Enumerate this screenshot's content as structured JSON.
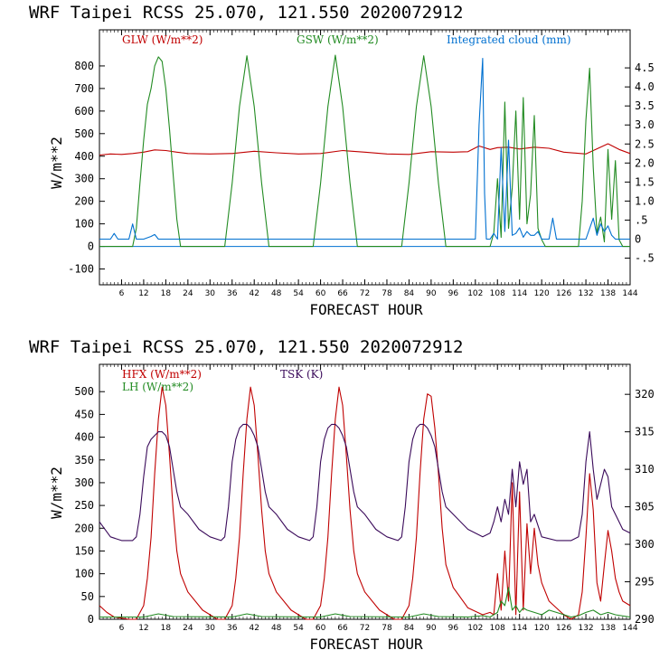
{
  "colors": {
    "red": "#c00000",
    "green": "#228b22",
    "blue": "#0070d0",
    "purple": "#3a0a5a",
    "black": "#000000"
  },
  "chart_data": [
    {
      "type": "line",
      "title": "WRF   Taipei RCSS   25.070, 121.550  2020072912",
      "xlabel": "FORECAST HOUR",
      "ylabel": "W/m**2",
      "xlim": [
        0,
        144
      ],
      "ylim": [
        -170,
        960
      ],
      "y2lim": [
        -1.2,
        5.5
      ],
      "yticks": [
        -100,
        0,
        100,
        200,
        300,
        400,
        500,
        600,
        700,
        800
      ],
      "y2ticks": [
        "-.5",
        "0",
        ".5",
        "1.0",
        "1.5",
        "2.0",
        "2.5",
        "3.0",
        "3.5",
        "4.0",
        "4.5"
      ],
      "xticks": [
        6,
        12,
        18,
        24,
        30,
        36,
        42,
        48,
        54,
        60,
        66,
        72,
        78,
        84,
        90,
        96,
        102,
        108,
        114,
        120,
        126,
        132,
        138,
        144
      ],
      "series": [
        {
          "name": "GLW (W/m**2)",
          "color_key": "red",
          "axis": "left",
          "x": [
            0,
            3,
            6,
            9,
            12,
            15,
            18,
            21,
            24,
            30,
            36,
            42,
            48,
            54,
            60,
            66,
            72,
            78,
            84,
            90,
            96,
            100,
            103,
            106,
            108,
            111,
            114,
            118,
            122,
            126,
            132,
            136,
            138,
            141,
            144
          ],
          "y": [
            405,
            410,
            408,
            412,
            418,
            428,
            425,
            418,
            412,
            410,
            412,
            422,
            415,
            410,
            412,
            425,
            418,
            410,
            408,
            420,
            418,
            420,
            445,
            430,
            438,
            440,
            432,
            440,
            435,
            418,
            410,
            440,
            455,
            430,
            412
          ]
        },
        {
          "name": "GSW (W/m**2)",
          "color_key": "green",
          "axis": "left",
          "x": [
            0,
            9,
            10,
            11,
            12,
            13,
            14,
            15,
            16,
            17,
            18,
            19,
            20,
            21,
            22,
            23,
            34,
            36,
            38,
            40,
            42,
            44,
            46,
            48,
            58,
            60,
            62,
            64,
            66,
            68,
            70,
            72,
            82,
            84,
            86,
            88,
            90,
            92,
            94,
            96,
            106,
            107,
            108,
            109,
            110,
            111,
            112,
            113,
            114,
            115,
            116,
            117,
            118,
            119,
            120,
            121,
            130,
            131,
            132,
            133,
            134,
            135,
            136,
            137,
            138,
            139,
            140,
            141,
            142,
            143,
            144
          ],
          "y": [
            0,
            0,
            80,
            280,
            470,
            630,
            700,
            800,
            840,
            820,
            700,
            520,
            320,
            120,
            0,
            0,
            0,
            280,
            620,
            845,
            620,
            280,
            0,
            0,
            0,
            280,
            620,
            848,
            620,
            280,
            0,
            0,
            0,
            280,
            620,
            845,
            620,
            280,
            0,
            0,
            0,
            60,
            300,
            40,
            640,
            80,
            260,
            600,
            120,
            660,
            100,
            230,
            580,
            80,
            30,
            0,
            0,
            200,
            560,
            790,
            350,
            60,
            130,
            20,
            430,
            120,
            380,
            30,
            0,
            0,
            0
          ]
        },
        {
          "name": "Integrated cloud (mm)",
          "color_key": "blue",
          "axis": "right",
          "x": [
            0,
            3,
            4,
            5,
            8,
            9,
            10,
            12,
            14,
            15,
            16,
            30,
            60,
            90,
            102,
            103,
            104,
            104.5,
            105,
            106,
            107,
            108,
            109,
            110,
            111,
            112,
            113,
            114,
            115,
            116,
            117,
            118,
            119,
            120,
            122,
            123,
            124,
            125,
            128,
            132,
            134,
            135,
            136,
            137,
            138,
            139,
            140,
            144
          ],
          "y": [
            0,
            0,
            0.15,
            0,
            0,
            0.4,
            0,
            0,
            0.07,
            0.12,
            0,
            0,
            0,
            0,
            0,
            3.0,
            4.75,
            1.2,
            0,
            0,
            0.15,
            0,
            2.4,
            0.2,
            2.6,
            0.1,
            0.15,
            0.3,
            0.05,
            0.2,
            0.1,
            0.1,
            0.2,
            0,
            0,
            0.55,
            0,
            0,
            0,
            0,
            0.55,
            0.1,
            0.4,
            0.2,
            0.35,
            0.1,
            0,
            0
          ]
        }
      ]
    },
    {
      "type": "line",
      "title": "WRF   Taipei RCSS   25.070, 121.550  2020072912",
      "xlabel": "FORECAST HOUR",
      "ylabel": "W/m**2",
      "xlim": [
        0,
        144
      ],
      "ylim": [
        0,
        560
      ],
      "y2lim": [
        290,
        324
      ],
      "yticks": [
        0,
        50,
        100,
        150,
        200,
        250,
        300,
        350,
        400,
        450,
        500
      ],
      "y2ticks": [
        290,
        295,
        300,
        305,
        310,
        315,
        320
      ],
      "xticks": [
        6,
        12,
        18,
        24,
        30,
        36,
        42,
        48,
        54,
        60,
        66,
        72,
        78,
        84,
        90,
        96,
        102,
        108,
        114,
        120,
        126,
        132,
        138,
        144
      ],
      "series": [
        {
          "name": "HFX (W/m**2)",
          "color_key": "red",
          "axis": "left",
          "x": [
            0,
            2,
            4,
            8,
            10,
            12,
            13,
            14,
            15,
            16,
            17,
            18,
            19,
            20,
            21,
            22,
            24,
            28,
            32,
            34,
            36,
            37,
            38,
            39,
            40,
            41,
            42,
            43,
            44,
            45,
            46,
            48,
            52,
            56,
            58,
            60,
            61,
            62,
            63,
            64,
            65,
            66,
            67,
            68,
            69,
            70,
            72,
            76,
            80,
            82,
            84,
            85,
            86,
            87,
            88,
            89,
            90,
            91,
            92,
            93,
            94,
            96,
            100,
            104,
            106,
            107,
            108,
            109,
            110,
            111,
            112,
            113,
            114,
            115,
            116,
            117,
            118,
            119,
            120,
            122,
            126,
            128,
            130,
            131,
            132,
            133,
            134,
            135,
            136,
            137,
            138,
            139,
            140,
            141,
            142,
            144
          ],
          "y": [
            30,
            15,
            5,
            0,
            0,
            30,
            90,
            180,
            320,
            440,
            510,
            470,
            360,
            240,
            150,
            100,
            60,
            20,
            0,
            0,
            30,
            90,
            180,
            320,
            440,
            510,
            470,
            360,
            240,
            150,
            100,
            60,
            20,
            0,
            0,
            30,
            90,
            180,
            320,
            440,
            510,
            470,
            360,
            240,
            150,
            100,
            60,
            20,
            0,
            0,
            30,
            90,
            180,
            320,
            440,
            495,
            490,
            420,
            320,
            200,
            120,
            70,
            25,
            10,
            15,
            10,
            100,
            20,
            150,
            40,
            300,
            10,
            280,
            20,
            210,
            100,
            200,
            120,
            80,
            40,
            10,
            0,
            10,
            60,
            180,
            320,
            240,
            80,
            40,
            120,
            195,
            150,
            90,
            60,
            40,
            30
          ]
        },
        {
          "name": "LH (W/m**2)",
          "color_key": "green",
          "axis": "left",
          "x": [
            0,
            12,
            16,
            20,
            36,
            40,
            44,
            60,
            64,
            68,
            84,
            88,
            92,
            100,
            104,
            106,
            108,
            109,
            110,
            111,
            112,
            113,
            114,
            115,
            116,
            118,
            120,
            122,
            124,
            128,
            130,
            132,
            134,
            136,
            138,
            140,
            144
          ],
          "y": [
            5,
            5,
            12,
            6,
            5,
            12,
            6,
            5,
            12,
            6,
            5,
            12,
            6,
            5,
            8,
            5,
            15,
            40,
            30,
            70,
            20,
            30,
            15,
            25,
            20,
            15,
            10,
            20,
            15,
            5,
            8,
            15,
            20,
            10,
            15,
            10,
            5
          ]
        },
        {
          "name": "TSK (K)",
          "color_key": "purple",
          "axis": "right",
          "x": [
            0,
            3,
            6,
            9,
            10,
            11,
            12,
            13,
            14,
            15,
            16,
            17,
            18,
            19,
            20,
            21,
            22,
            24,
            27,
            30,
            33,
            34,
            35,
            36,
            37,
            38,
            39,
            40,
            41,
            42,
            43,
            44,
            45,
            46,
            48,
            51,
            54,
            57,
            58,
            59,
            60,
            61,
            62,
            63,
            64,
            65,
            66,
            67,
            68,
            69,
            70,
            72,
            75,
            78,
            81,
            82,
            83,
            84,
            85,
            86,
            87,
            88,
            89,
            90,
            91,
            92,
            93,
            94,
            96,
            100,
            104,
            106,
            107,
            108,
            109,
            110,
            111,
            112,
            113,
            114,
            115,
            116,
            117,
            118,
            120,
            124,
            128,
            130,
            131,
            132,
            133,
            134,
            135,
            136,
            137,
            138,
            139,
            140,
            141,
            142,
            144
          ],
          "y": [
            303,
            301,
            300.5,
            300.5,
            301,
            304,
            309,
            313,
            314,
            314.5,
            315,
            315,
            314.5,
            313,
            310,
            307,
            305,
            304,
            302,
            301,
            300.5,
            301,
            305,
            311,
            314,
            315.5,
            316,
            316,
            315.5,
            314.5,
            313,
            310,
            307,
            305,
            304,
            302,
            301,
            300.5,
            301,
            305,
            311,
            314,
            315.5,
            316,
            316,
            315.5,
            314.5,
            313,
            310,
            307,
            305,
            304,
            302,
            301,
            300.5,
            301,
            305,
            311,
            314,
            315.5,
            316,
            316,
            315.5,
            314.5,
            313,
            310,
            307,
            305,
            304,
            302,
            301,
            301.5,
            303,
            305,
            303,
            306,
            304,
            310,
            305,
            311,
            308,
            310,
            303,
            304,
            301,
            300.5,
            300.5,
            301,
            304,
            311,
            315,
            310,
            306,
            308,
            310,
            309,
            305,
            304,
            303,
            302,
            301.5
          ]
        }
      ]
    }
  ],
  "panels": [
    {
      "title": "WRF   Taipei RCSS   25.070, 121.550  2020072912",
      "xlabel": "FORECAST HOUR",
      "ylabel": "W/m**2",
      "legend": [
        "GLW (W/m**2)",
        "GSW (W/m**2)",
        "Integrated cloud (mm)"
      ]
    },
    {
      "title": "WRF   Taipei RCSS   25.070, 121.550  2020072912",
      "xlabel": "FORECAST HOUR",
      "ylabel": "W/m**2",
      "legend": [
        "HFX (W/m**2)",
        "LH  (W/m**2)",
        "TSK (K)"
      ]
    }
  ]
}
